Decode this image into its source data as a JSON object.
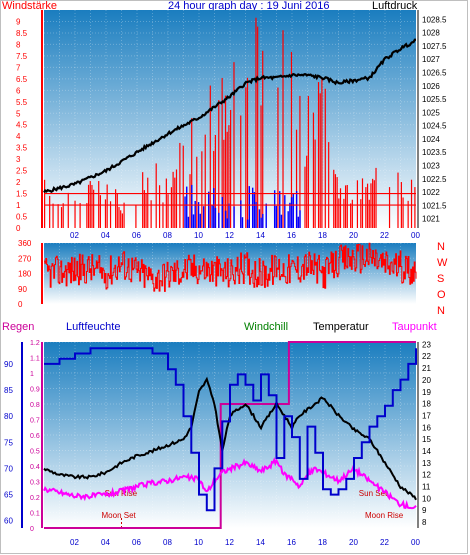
{
  "header": {
    "left_label": "Windstärke",
    "title": "24 hour graph day : 19 Juni 2016",
    "right_label": "Luftdruck"
  },
  "colors": {
    "plot_top": "#1a7dbf",
    "plot_bottom": "#ffffff",
    "wind": "#ff0000",
    "gust": "#0000ff",
    "pressure": "#000000",
    "humidity": "#0000cc",
    "windchill": "#008000",
    "temperature": "#000000",
    "dewpoint": "#ff00ff",
    "rain": "#cc0099"
  },
  "chart_data": [
    {
      "type": "line",
      "x_ticks": [
        "02",
        "04",
        "06",
        "08",
        "10",
        "12",
        "14",
        "16",
        "18",
        "20",
        "22",
        "00"
      ],
      "left_axis": {
        "label": "Windstärke",
        "ticks": [
          "0",
          "0.5",
          "1",
          "1.5",
          "2",
          "2.5",
          "3",
          "3.5",
          "4",
          "4.5",
          "5",
          "5.5",
          "6",
          "6.5",
          "7",
          "7.5",
          "8",
          "8.5",
          "9"
        ],
        "ylim": [
          0,
          9.5
        ]
      },
      "right_axis": {
        "label": "Luftdruck",
        "ticks": [
          "1021",
          "1021.5",
          "1022",
          "1022.5",
          "1023",
          "1023.5",
          "1024",
          "1024.5",
          "1025",
          "1025.5",
          "1026",
          "1026.5",
          "1027",
          "1027.5",
          "1028",
          "1028.5"
        ],
        "ylim": [
          1020.65,
          1028.85
        ]
      },
      "series": [
        {
          "name": "Windstärke",
          "x": [
            0,
            1,
            2,
            3,
            4,
            5,
            6,
            7,
            8,
            9,
            10,
            11,
            12,
            13,
            14,
            15,
            16,
            17,
            18,
            19,
            20,
            21,
            22,
            23,
            24
          ],
          "values": [
            1.5,
            1.5,
            1,
            1.5,
            2,
            1,
            1.5,
            2,
            1.5,
            3,
            3.5,
            4.5,
            5,
            6,
            6.5,
            8,
            5,
            4,
            4.5,
            1.5,
            1.5,
            1.5,
            3,
            2,
            1.5
          ]
        },
        {
          "name": "Luftdruck",
          "x": [
            0,
            2,
            4,
            6,
            8,
            10,
            12,
            13,
            14,
            15,
            16,
            17,
            18,
            19,
            20,
            21,
            22,
            23,
            24
          ],
          "values": [
            1022,
            1022.3,
            1022.8,
            1023.5,
            1024.2,
            1024.8,
            1025.6,
            1026.1,
            1026.3,
            1026.3,
            1026.4,
            1026.4,
            1026.3,
            1026.1,
            1026.2,
            1026.3,
            1027,
            1027.4,
            1027.7
          ]
        }
      ]
    },
    {
      "type": "line",
      "x_ticks": [
        "02",
        "04",
        "06",
        "08",
        "10",
        "12",
        "14",
        "16",
        "18",
        "20",
        "22",
        "00"
      ],
      "left_axis": {
        "ticks": [
          "0",
          "90",
          "180",
          "270",
          "360"
        ],
        "ylim": [
          0,
          360
        ]
      },
      "right_labels": [
        "N",
        "W",
        "S",
        "O",
        "N"
      ],
      "series": [
        {
          "name": "Windrichtung",
          "x": [
            0,
            1,
            2,
            3,
            4,
            5,
            6,
            7,
            8,
            9,
            10,
            11,
            12,
            13,
            14,
            15,
            16,
            17,
            18,
            19,
            20,
            21,
            22,
            23,
            24
          ],
          "values": [
            180,
            190,
            200,
            210,
            180,
            240,
            190,
            150,
            170,
            200,
            210,
            190,
            180,
            220,
            170,
            210,
            200,
            230,
            180,
            250,
            270,
            280,
            230,
            220,
            200
          ]
        }
      ]
    },
    {
      "type": "line",
      "header_labels": {
        "rain": "Regen",
        "humidity": "Luftfeuchte",
        "windchill": "Windchill",
        "temperature": "Temperatur",
        "dewpoint": "Taupunkt"
      },
      "x_ticks": [
        "02",
        "04",
        "06",
        "08",
        "10",
        "12",
        "14",
        "16",
        "18",
        "20",
        "22",
        "00"
      ],
      "axis_rain": {
        "ticks": [
          "0",
          "0.1",
          "0.2",
          "0.3",
          "0.4",
          "0.5",
          "0.6",
          "0.7",
          "0.8",
          "0.9",
          "1",
          "1.1",
          "1.2"
        ],
        "ylim": [
          0,
          1.2
        ]
      },
      "axis_humidity": {
        "ticks": [
          "60",
          "65",
          "70",
          "75",
          "80",
          "85",
          "90"
        ],
        "ylim": [
          58.6,
          94.2
        ]
      },
      "axis_temperature": {
        "ticks": [
          "8",
          "9",
          "10",
          "11",
          "12",
          "13",
          "14",
          "15",
          "16",
          "17",
          "18",
          "19",
          "20",
          "21",
          "22",
          "23"
        ],
        "ylim": [
          7.5,
          23.2
        ]
      },
      "events": [
        {
          "label": "Sun Rise",
          "hour": 5.2
        },
        {
          "label": "Moon Set",
          "hour": 5.0
        },
        {
          "label": "Sun Set",
          "hour": 21.6
        },
        {
          "label": "Moon Rise",
          "hour": 22.0
        }
      ],
      "series": [
        {
          "name": "Luftfeuchte",
          "x": [
            0,
            1,
            2,
            3,
            4,
            5,
            6,
            7,
            8,
            8.5,
            9,
            9.5,
            10,
            10.5,
            11,
            11.5,
            12,
            12.5,
            13,
            13.5,
            14,
            14.5,
            15,
            15.5,
            16,
            16.5,
            17,
            17.5,
            18,
            18.5,
            19,
            19.5,
            20,
            20.5,
            21,
            21.5,
            22,
            22.5,
            23,
            23.5,
            24
          ],
          "values": [
            90,
            91,
            92,
            93,
            93,
            93,
            93,
            92,
            89,
            86,
            80,
            73,
            65,
            62,
            70,
            79,
            86,
            88,
            86,
            83,
            88,
            84,
            72,
            80,
            76,
            68,
            78,
            73,
            66,
            65,
            66,
            68,
            72,
            75,
            78,
            80,
            82,
            85,
            87,
            90,
            93
          ]
        },
        {
          "name": "Temperatur",
          "x": [
            0,
            1,
            2,
            3,
            4,
            5,
            6,
            7,
            8,
            9,
            9.5,
            10,
            10.5,
            11,
            11.5,
            12,
            13,
            14,
            14.5,
            15,
            15.5,
            16,
            16.5,
            17,
            17.5,
            18,
            19,
            20,
            21,
            22,
            23,
            24
          ],
          "values": [
            12.5,
            12,
            11.8,
            11.8,
            12.2,
            13,
            13.6,
            14,
            14.5,
            15,
            16,
            19,
            20,
            18,
            14,
            17,
            18,
            16,
            17,
            18,
            17,
            16,
            17,
            17.5,
            18,
            18.5,
            17,
            15.8,
            15,
            13,
            11,
            10
          ]
        },
        {
          "name": "Taupunkt",
          "x": [
            0,
            1,
            2,
            3,
            4,
            5,
            6,
            7,
            8,
            9,
            10,
            10.5,
            11,
            11.5,
            12,
            13,
            14,
            14.5,
            15,
            15.5,
            16,
            16.5,
            17,
            17.5,
            18,
            19,
            20,
            21,
            22,
            23,
            24
          ],
          "values": [
            10.8,
            10.5,
            10.2,
            10.2,
            10.3,
            10.6,
            11,
            11.3,
            11.5,
            11.8,
            11.6,
            10.5,
            11.5,
            12.2,
            12.5,
            13,
            12.3,
            12.7,
            13.2,
            12,
            11.7,
            11,
            12,
            12.5,
            12.2,
            11.5,
            12.5,
            11.5,
            10.5,
            9.5,
            9.2
          ]
        },
        {
          "name": "Regen",
          "x": [
            0,
            11.4,
            11.4,
            15.8,
            15.8,
            24
          ],
          "values": [
            0,
            0,
            0.8,
            0.8,
            1.2,
            1.2
          ]
        }
      ]
    }
  ]
}
